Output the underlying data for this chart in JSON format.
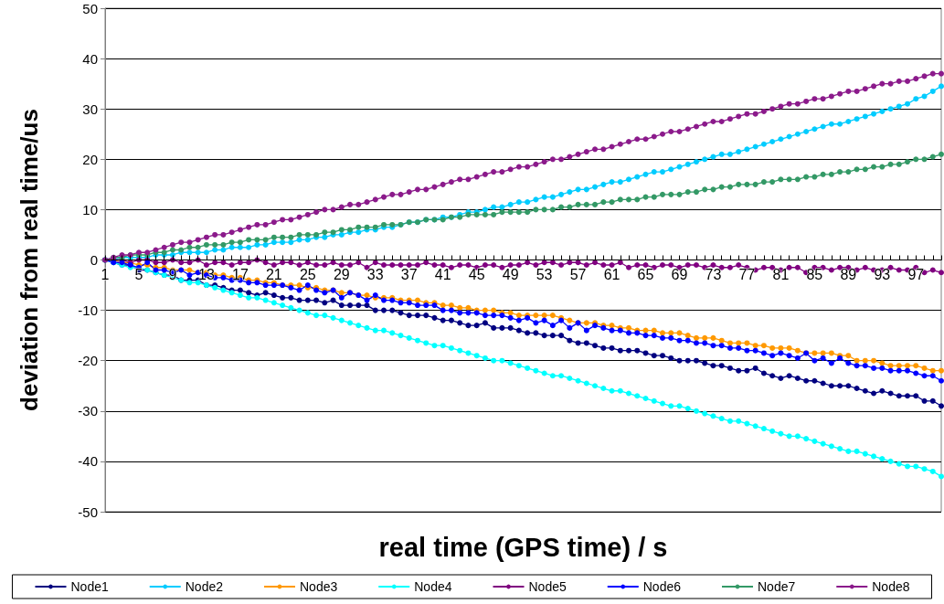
{
  "chart_data": {
    "type": "line",
    "xlabel": "real time (GPS time) / s",
    "ylabel": "deviation from real time/us",
    "categories": [
      "1",
      null,
      null,
      null,
      "5",
      null,
      null,
      null,
      "9",
      null,
      null,
      null,
      "13",
      null,
      null,
      null,
      "17",
      null,
      null,
      null,
      "21",
      null,
      null,
      null,
      "25",
      null,
      null,
      null,
      "29",
      null,
      null,
      null,
      "33",
      null,
      null,
      null,
      "37",
      null,
      null,
      null,
      "41",
      null,
      null,
      null,
      "45",
      null,
      null,
      null,
      "49",
      null,
      null,
      null,
      "53",
      null,
      null,
      null,
      "57",
      null,
      null,
      null,
      "61",
      null,
      null,
      null,
      "65",
      null,
      null,
      null,
      "69",
      null,
      null,
      null,
      "73",
      null,
      null,
      null,
      "77",
      null,
      null,
      null,
      "81",
      null,
      null,
      null,
      "85",
      null,
      null,
      null,
      "89",
      null,
      null,
      null,
      "93",
      null,
      null,
      null,
      "97",
      null,
      null,
      null
    ],
    "series": [
      {
        "name": "Node1",
        "color": "#000080",
        "values": [
          0,
          -0.5,
          -1,
          -1,
          -2,
          -2,
          -2.5,
          -3,
          -3,
          -4,
          -4,
          -4,
          -5,
          -5,
          -5.5,
          -6,
          -6,
          -6.5,
          -7,
          -6.5,
          -7,
          -7.5,
          -7.5,
          -8,
          -8,
          -8,
          -8.5,
          -8,
          -9,
          -9,
          -9,
          -9,
          -10,
          -10,
          -10,
          -10.5,
          -11,
          -11,
          -11,
          -11.5,
          -12,
          -12,
          -12.5,
          -13,
          -13,
          -12.5,
          -13.5,
          -13.5,
          -13.5,
          -14,
          -14.5,
          -14.5,
          -15,
          -15,
          -15,
          -16,
          -16.5,
          -16.5,
          -17,
          -17.5,
          -17.5,
          -18,
          -18,
          -18,
          -18.5,
          -19,
          -19,
          -19.5,
          -20,
          -20,
          -20,
          -20.5,
          -21,
          -21,
          -21.5,
          -22,
          -22,
          -21.5,
          -22.5,
          -23,
          -23.5,
          -23,
          -23.5,
          -24,
          -24,
          -24.5,
          -25,
          -25,
          -25,
          -25.5,
          -26,
          -26.5,
          -26,
          -26.5,
          -27,
          -27,
          -27,
          -28,
          -28,
          -29
        ]
      },
      {
        "name": "Node2",
        "color": "#00ccff",
        "values": [
          0,
          0,
          0.5,
          0.5,
          0.5,
          0.5,
          1,
          1,
          1,
          1.5,
          1.5,
          1.5,
          1.5,
          2,
          2,
          2.5,
          2.5,
          2.5,
          3,
          3,
          3.5,
          3.5,
          3.5,
          4,
          4,
          4.5,
          4.5,
          5,
          5,
          5.5,
          5.5,
          6,
          6,
          6.5,
          6.5,
          7,
          7.5,
          7.5,
          8,
          8,
          8.5,
          8.5,
          9,
          9.5,
          9.5,
          10,
          10.5,
          10.5,
          11,
          11.5,
          11.5,
          12,
          12.5,
          12.5,
          13,
          13.5,
          14,
          14,
          14.5,
          15,
          15.5,
          15.5,
          16,
          16.5,
          17,
          17.5,
          17.5,
          18,
          18.5,
          19,
          19.5,
          20,
          20.5,
          21,
          21,
          21.5,
          22,
          22.5,
          23,
          23.5,
          24,
          24.5,
          25,
          25.5,
          26,
          26.5,
          27,
          27,
          27.5,
          28,
          28.5,
          29,
          29.5,
          30,
          30.5,
          31,
          32,
          32.5,
          33.5,
          34.5
        ]
      },
      {
        "name": "Node3",
        "color": "#ff9900",
        "values": [
          0,
          0,
          -0.5,
          -0.5,
          -1,
          -1,
          -1.5,
          -1.5,
          -2,
          -2,
          -2,
          -2.5,
          -2.5,
          -3,
          -3,
          -3.5,
          -3.5,
          -4,
          -4,
          -4.5,
          -4.5,
          -5,
          -5,
          -5,
          -5.5,
          -5.5,
          -6,
          -6,
          -6.5,
          -6.5,
          -7,
          -7,
          -7.5,
          -7.5,
          -7.5,
          -8,
          -8,
          -8,
          -8.5,
          -8.5,
          -9,
          -9,
          -9.5,
          -9.5,
          -10,
          -10,
          -10,
          -10.5,
          -10.5,
          -11,
          -11,
          -11,
          -11,
          -11,
          -11.5,
          -12,
          -12.5,
          -12.5,
          -12.5,
          -13,
          -13,
          -13.5,
          -13.5,
          -14,
          -14,
          -14,
          -14.5,
          -14.5,
          -14.5,
          -15,
          -15.5,
          -15.5,
          -15.5,
          -16,
          -16.5,
          -16.5,
          -16.5,
          -17,
          -17,
          -17.5,
          -17.5,
          -17.5,
          -18,
          -18.5,
          -18.5,
          -18.5,
          -18.5,
          -19,
          -19,
          -20,
          -20,
          -20,
          -20.5,
          -21,
          -21,
          -21,
          -21,
          -21.5,
          -22,
          -22
        ]
      },
      {
        "name": "Node4",
        "color": "#00ffff",
        "values": [
          0,
          -0.5,
          -1,
          -1.5,
          -1.5,
          -2,
          -2.5,
          -3,
          -3.5,
          -4,
          -4.5,
          -4.5,
          -5,
          -5.5,
          -6,
          -6.5,
          -7,
          -7.5,
          -7.5,
          -8,
          -8.5,
          -9,
          -9.5,
          -10,
          -10.5,
          -11,
          -11,
          -11.5,
          -12,
          -12.5,
          -13,
          -13.5,
          -14,
          -14,
          -14.5,
          -15,
          -15.5,
          -16,
          -16.5,
          -17,
          -17,
          -17.5,
          -18,
          -18.5,
          -19,
          -19.5,
          -20,
          -20,
          -20.5,
          -21,
          -21.5,
          -22,
          -22.5,
          -23,
          -23,
          -23.5,
          -24,
          -24.5,
          -25,
          -25.5,
          -26,
          -26,
          -26.5,
          -27,
          -27.5,
          -28,
          -28.5,
          -29,
          -29,
          -29.5,
          -30,
          -30.5,
          -31,
          -31.5,
          -32,
          -32,
          -32.5,
          -33,
          -33.5,
          -34,
          -34.5,
          -35,
          -35,
          -35.5,
          -36,
          -36.5,
          -37,
          -37.5,
          -38,
          -38,
          -38.5,
          -39,
          -39.5,
          -40,
          -40.5,
          -41,
          -41,
          -41.5,
          -42,
          -43
        ]
      },
      {
        "name": "Node5",
        "color": "#800080",
        "values": [
          0,
          0,
          0,
          -0.5,
          0,
          0,
          -0.5,
          -0.5,
          0,
          -0.5,
          -0.5,
          0,
          -1,
          -0.5,
          -0.5,
          -1,
          -0.5,
          -0.5,
          0,
          -0.5,
          -1,
          -0.5,
          -0.5,
          -1,
          -0.5,
          -1,
          -1,
          -0.5,
          -1,
          -1,
          -0.5,
          -1.5,
          -0.5,
          -1,
          -1,
          -1,
          -1,
          -1,
          -0.5,
          -1,
          -1,
          -1.5,
          -1,
          -1,
          -1.5,
          -1,
          -1,
          -1.5,
          -1,
          -1,
          -0.5,
          -1,
          -0.5,
          -0.5,
          -1,
          -0.5,
          -0.5,
          -1,
          -0.5,
          -1,
          -1,
          -0.5,
          -1.5,
          -1,
          -1,
          -1.5,
          -1,
          -1,
          -1.5,
          -1,
          -1,
          -1.5,
          -1,
          -1.5,
          -1.5,
          -1,
          -1.5,
          -2,
          -1.5,
          -1.5,
          -2,
          -1.5,
          -1.5,
          -2.5,
          -1.5,
          -1.5,
          -2,
          -1.5,
          -1.5,
          -2,
          -1.5,
          -2,
          -2,
          -1.5,
          -2,
          -2,
          -1.5,
          -2.5,
          -2,
          -2.5
        ]
      },
      {
        "name": "Node6",
        "color": "#0000ff",
        "values": [
          0,
          -0.5,
          -0.5,
          -1,
          -1.5,
          -0.5,
          -2,
          -2,
          -2.5,
          -2,
          -3,
          -2.5,
          -3,
          -3.5,
          -3.5,
          -4,
          -4,
          -4.5,
          -4.5,
          -5,
          -5,
          -5,
          -5.5,
          -6,
          -5,
          -6,
          -6.5,
          -6,
          -7.5,
          -6.5,
          -7,
          -8,
          -7,
          -8,
          -8,
          -8.5,
          -8.5,
          -9,
          -9,
          -9,
          -10,
          -10,
          -10.5,
          -10.5,
          -10.5,
          -11,
          -11,
          -11,
          -11.5,
          -12,
          -11.5,
          -12.5,
          -12,
          -13,
          -12,
          -13.5,
          -12.5,
          -14,
          -13,
          -13.5,
          -14,
          -14,
          -14.5,
          -14.5,
          -15,
          -15,
          -15.5,
          -15.5,
          -16,
          -16,
          -16.5,
          -16.5,
          -17,
          -17,
          -17.5,
          -17.5,
          -18,
          -18,
          -18.5,
          -19,
          -18.5,
          -19,
          -19.5,
          -18.5,
          -20,
          -19.5,
          -20.5,
          -19.5,
          -20.5,
          -21,
          -21,
          -21.5,
          -21.5,
          -22,
          -22,
          -22,
          -22.5,
          -23,
          -23,
          -24
        ]
      },
      {
        "name": "Node7",
        "color": "#339966",
        "values": [
          0,
          0.5,
          0.5,
          1,
          1,
          1,
          1.5,
          1.5,
          2,
          2,
          2.5,
          2.5,
          3,
          3,
          3,
          3.5,
          3.5,
          4,
          4,
          4,
          4.5,
          4.5,
          4.5,
          5,
          5,
          5,
          5.5,
          5.5,
          6,
          6,
          6.5,
          6.5,
          6.5,
          7,
          7,
          7,
          7.5,
          7.5,
          8,
          8,
          8,
          8.5,
          8.5,
          9,
          9,
          9,
          9,
          9.5,
          9.5,
          9.5,
          9.5,
          10,
          10,
          10,
          10.5,
          10.5,
          11,
          11,
          11,
          11.5,
          11.5,
          12,
          12,
          12,
          12.5,
          12.5,
          13,
          13,
          13,
          13.5,
          13.5,
          14,
          14,
          14.5,
          14.5,
          15,
          15,
          15,
          15.5,
          15.5,
          16,
          16,
          16,
          16.5,
          16.5,
          17,
          17,
          17.5,
          17.5,
          18,
          18,
          18.5,
          18.5,
          19,
          19,
          19.5,
          20,
          20,
          20.5,
          21
        ]
      },
      {
        "name": "Node8",
        "color": "#8b1a8b",
        "values": [
          0,
          0.5,
          1,
          1,
          1.5,
          1.5,
          2,
          2.5,
          3,
          3.5,
          3.5,
          4,
          4.5,
          5,
          5,
          5.5,
          6,
          6.5,
          7,
          7,
          7.5,
          8,
          8,
          8.5,
          9,
          9.5,
          10,
          10,
          10.5,
          11,
          11,
          11.5,
          12,
          12.5,
          13,
          13,
          13.5,
          14,
          14,
          14.5,
          15,
          15.5,
          16,
          16,
          16.5,
          17,
          17.5,
          17.5,
          18,
          18.5,
          18.5,
          19,
          19.5,
          20,
          20,
          20.5,
          21,
          21.5,
          22,
          22,
          22.5,
          23,
          23.5,
          24,
          24,
          24.5,
          25,
          25.5,
          25.5,
          26,
          26.5,
          27,
          27.5,
          27.5,
          28,
          28.5,
          29,
          29,
          29.5,
          30,
          30.5,
          31,
          31,
          31.5,
          32,
          32,
          32.5,
          33,
          33.5,
          33.5,
          34,
          34.5,
          35,
          35,
          35.5,
          35.5,
          36,
          36.5,
          37,
          37
        ]
      }
    ],
    "ylim": [
      -50,
      50
    ],
    "yticks": [
      -50,
      -40,
      -30,
      -20,
      -10,
      0,
      10,
      20,
      30,
      40,
      50
    ],
    "grid": "y",
    "legend": "bottom",
    "marker": "circle",
    "line_style": "solid"
  }
}
